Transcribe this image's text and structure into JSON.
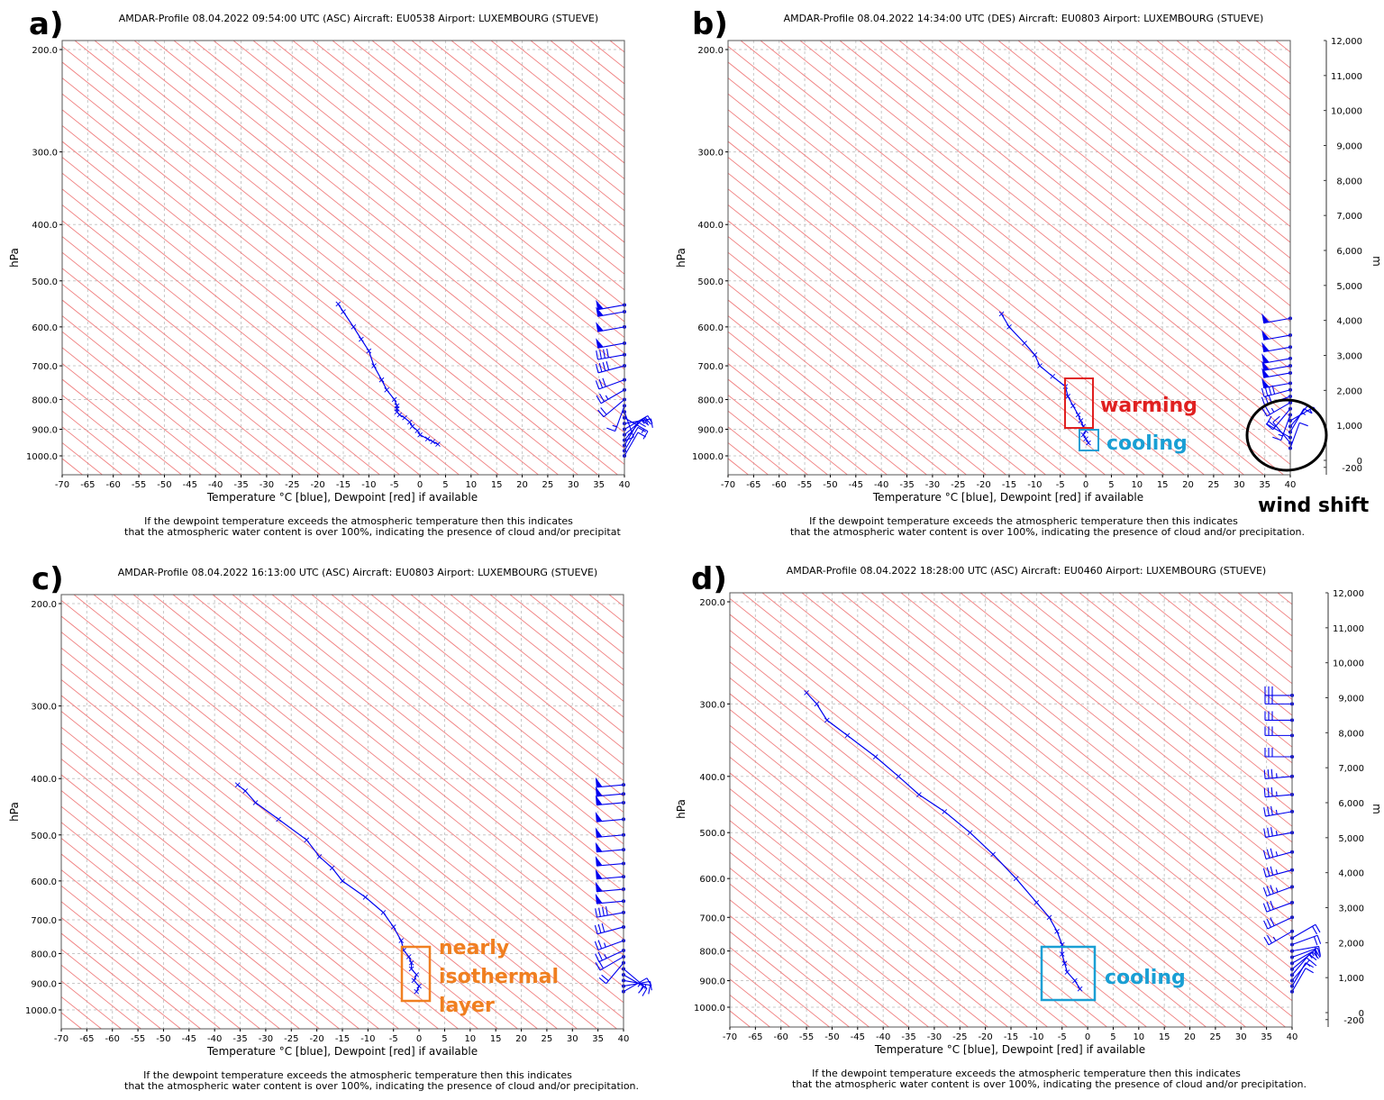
{
  "panels": [
    {
      "letter": "a)",
      "title": "AMDAR-Profile 08.04.2022 09:54:00 UTC (ASC) Aircraft: EU0538 Airport: LUXEMBOURG (STUEVE)",
      "note_line1": "If the dewpoint temperature exceeds the atmospheric temperature then this indicates",
      "note_line2": "that the atmospheric water content is over 100%, indicating the presence of cloud and/or precipitat",
      "annotations": []
    },
    {
      "letter": "b)",
      "title": "AMDAR-Profile 08.04.2022 14:34:00 UTC (DES) Aircraft: EU0803 Airport: LUXEMBOURG (STUEVE)",
      "note_line1": "If the dewpoint temperature exceeds the atmospheric temperature then this indicates",
      "note_line2": "that the atmospheric water content is over 100%, indicating the presence of cloud and/or precipitation.",
      "annotations": [
        {
          "text": "warming",
          "color": "#e02020",
          "box": [
            -4,
            750,
            1,
            890
          ]
        },
        {
          "text": "cooling",
          "color": "#1a9fd4",
          "box": [
            -1.5,
            905,
            2,
            975
          ]
        },
        {
          "text": "wind shift",
          "color": "#000000",
          "ellipse": true
        }
      ]
    },
    {
      "letter": "c)",
      "title": "AMDAR-Profile 08.04.2022 16:13:00 UTC (ASC) Aircraft: EU0803 Airport: LUXEMBOURG (STUEVE)",
      "note_line1": "If the dewpoint temperature exceeds the atmospheric temperature then this indicates",
      "note_line2": "that the atmospheric water content is over 100%, indicating the presence of cloud and/or precipitation.",
      "annotations": [
        {
          "text": "nearly",
          "color": "#f07f20"
        },
        {
          "text": "isothermal",
          "color": "#f07f20"
        },
        {
          "text": "layer",
          "color": "#f07f20"
        }
      ]
    },
    {
      "letter": "d)",
      "title": "AMDAR-Profile 08.04.2022 18:28:00 UTC (ASC) Aircraft: EU0460 Airport: LUXEMBOURG (STUEVE)",
      "note_line1": "If the dewpoint temperature exceeds the atmospheric temperature then this indicates",
      "note_line2": "that the atmospheric water content is over 100%, indicating the presence of cloud and/or precipitation.",
      "annotations": [
        {
          "text": "cooling",
          "color": "#1a9fd4"
        }
      ]
    }
  ],
  "axes": {
    "xlabel": "Temperature °C [blue], Dewpoint [red] if available",
    "ylabel": "hPa",
    "y2label": "m",
    "x_ticks": [
      "-70",
      "-65",
      "-60",
      "-55",
      "-50",
      "-45",
      "-40",
      "-35",
      "-30",
      "-25",
      "-20",
      "-15",
      "-10",
      "-5",
      "0",
      "5",
      "10",
      "15",
      "20",
      "25",
      "30",
      "35",
      "40"
    ],
    "p_ticks": [
      "200.0",
      "300.0",
      "400.0",
      "500.0",
      "600.0",
      "700.0",
      "800.0",
      "900.0",
      "1000.0"
    ],
    "m_ticks": [
      "12,000",
      "11,000",
      "10,000",
      "9,000",
      "8,000",
      "7,000",
      "6,000",
      "5,000",
      "4,000",
      "3,000",
      "2,000",
      "1,000",
      "0",
      "-200"
    ]
  },
  "chart_data": [
    {
      "type": "line",
      "title": "AMDAR-Profile 08.04.2022 09:54:00 UTC (ASC) Aircraft: EU0538 Airport: LUXEMBOURG (STUEVE)",
      "xlabel": "Temperature °C [blue], Dewpoint [red] if available",
      "ylabel": "hPa",
      "xlim": [
        -70,
        40
      ],
      "ylim": [
        1050,
        190
      ],
      "series": [
        {
          "name": "Temperature",
          "color": "#0000ee",
          "pressure": [
            548,
            565,
            600,
            630,
            660,
            700,
            740,
            770,
            800,
            820,
            830,
            840,
            850,
            860,
            875,
            890,
            905,
            920,
            935,
            945,
            955
          ],
          "temp": [
            -16,
            -15,
            -13,
            -11.5,
            -10,
            -9,
            -7.5,
            -6.5,
            -5,
            -4.5,
            -4.5,
            -4.5,
            -4,
            -3,
            -2,
            -1.5,
            -0.5,
            0,
            1.5,
            2.5,
            3.5
          ]
        }
      ],
      "wind_barbs": {
        "pressure": [
          550,
          565,
          600,
          640,
          670,
          700,
          740,
          770,
          800,
          820,
          840,
          860,
          880,
          900,
          920,
          940,
          960,
          980,
          1000
        ],
        "speed_kt": [
          50,
          50,
          50,
          50,
          40,
          40,
          30,
          25,
          20,
          15,
          15,
          15,
          15,
          15,
          15,
          10,
          10,
          10,
          10
        ],
        "dir_deg": [
          260,
          260,
          260,
          260,
          260,
          255,
          250,
          240,
          230,
          200,
          160,
          120,
          80,
          60,
          50,
          40,
          30,
          30,
          30
        ]
      }
    },
    {
      "type": "line",
      "title": "AMDAR-Profile 08.04.2022 14:34:00 UTC (DES) Aircraft: EU0803 Airport: LUXEMBOURG (STUEVE)",
      "xlabel": "Temperature °C [blue], Dewpoint [red] if available",
      "ylabel": "hPa",
      "y2label": "m",
      "xlim": [
        -70,
        40
      ],
      "ylim": [
        1050,
        190
      ],
      "series": [
        {
          "name": "Temperature",
          "color": "#0000ee",
          "pressure": [
            570,
            600,
            640,
            670,
            700,
            730,
            760,
            790,
            820,
            850,
            870,
            890,
            905,
            920,
            935,
            950
          ],
          "temp": [
            -16.5,
            -15,
            -12,
            -10,
            -9,
            -6.5,
            -4,
            -3.5,
            -2.5,
            -1.5,
            -1,
            -0.5,
            0,
            -0.5,
            0,
            0.5
          ]
        }
      ],
      "wind_barbs": {
        "pressure": [
          580,
          620,
          650,
          680,
          700,
          720,
          750,
          770,
          790,
          810,
          830,
          850,
          870,
          890,
          910,
          930,
          950,
          970
        ],
        "speed_kt": [
          50,
          50,
          50,
          50,
          50,
          50,
          50,
          40,
          30,
          25,
          20,
          15,
          15,
          10,
          15,
          10,
          10,
          10
        ],
        "dir_deg": [
          260,
          260,
          260,
          260,
          260,
          260,
          260,
          255,
          250,
          240,
          220,
          200,
          60,
          40,
          30,
          300,
          320,
          20
        ]
      }
    },
    {
      "type": "line",
      "title": "AMDAR-Profile 08.04.2022 16:13:00 UTC (ASC) Aircraft: EU0803 Airport: LUXEMBOURG (STUEVE)",
      "xlabel": "Temperature °C [blue], Dewpoint [red] if available",
      "ylabel": "hPa",
      "xlim": [
        -70,
        40
      ],
      "ylim": [
        1050,
        190
      ],
      "series": [
        {
          "name": "Temperature",
          "color": "#0000ee",
          "pressure": [
            410,
            420,
            440,
            470,
            510,
            545,
            570,
            600,
            640,
            680,
            720,
            760,
            790,
            810,
            830,
            850,
            870,
            890,
            910,
            930
          ],
          "temp": [
            -35.5,
            -34,
            -32,
            -27.5,
            -22,
            -19.5,
            -17,
            -15,
            -10.5,
            -7,
            -5,
            -3.5,
            -3,
            -2,
            -1.5,
            -1.5,
            -0.5,
            -1,
            0,
            -0.5
          ]
        }
      ],
      "wind_barbs": {
        "pressure": [
          410,
          425,
          440,
          470,
          500,
          530,
          560,
          590,
          620,
          650,
          680,
          720,
          760,
          790,
          810,
          830,
          850,
          870,
          890,
          910,
          930
        ],
        "speed_kt": [
          50,
          50,
          50,
          50,
          50,
          50,
          50,
          50,
          50,
          50,
          40,
          30,
          25,
          25,
          20,
          20,
          15,
          15,
          15,
          10,
          10
        ],
        "dir_deg": [
          265,
          265,
          265,
          265,
          265,
          265,
          265,
          265,
          265,
          265,
          260,
          255,
          250,
          245,
          240,
          220,
          130,
          120,
          100,
          80,
          60
        ]
      }
    },
    {
      "type": "line",
      "title": "AMDAR-Profile 08.04.2022 18:28:00 UTC (ASC) Aircraft: EU0460 Airport: LUXEMBOURG (STUEVE)",
      "xlabel": "Temperature °C [blue], Dewpoint [red] if available",
      "ylabel": "hPa",
      "y2label": "m",
      "xlim": [
        -70,
        40
      ],
      "ylim": [
        1050,
        190
      ],
      "series": [
        {
          "name": "Temperature",
          "color": "#0000ee",
          "pressure": [
            287,
            300,
            320,
            340,
            370,
            400,
            430,
            460,
            500,
            545,
            600,
            660,
            700,
            740,
            780,
            810,
            840,
            870,
            900,
            930
          ],
          "temp": [
            -55,
            -53,
            -51,
            -47,
            -41.5,
            -37,
            -33,
            -28,
            -23,
            -18.5,
            -14,
            -10,
            -7.5,
            -6,
            -5,
            -5,
            -4.5,
            -4,
            -2.5,
            -1.5
          ]
        }
      ],
      "wind_barbs": {
        "pressure": [
          290,
          300,
          320,
          340,
          370,
          400,
          430,
          460,
          500,
          540,
          580,
          620,
          660,
          700,
          740,
          760,
          780,
          800,
          820,
          840,
          860,
          880,
          900,
          920,
          940
        ],
        "speed_kt": [
          30,
          30,
          30,
          30,
          30,
          35,
          35,
          35,
          35,
          35,
          35,
          35,
          30,
          30,
          25,
          20,
          20,
          20,
          20,
          15,
          15,
          15,
          15,
          10,
          10
        ],
        "dir_deg": [
          270,
          270,
          270,
          270,
          270,
          265,
          265,
          260,
          260,
          255,
          255,
          250,
          250,
          245,
          240,
          60,
          70,
          80,
          70,
          60,
          50,
          40,
          40,
          30,
          30
        ]
      }
    }
  ]
}
